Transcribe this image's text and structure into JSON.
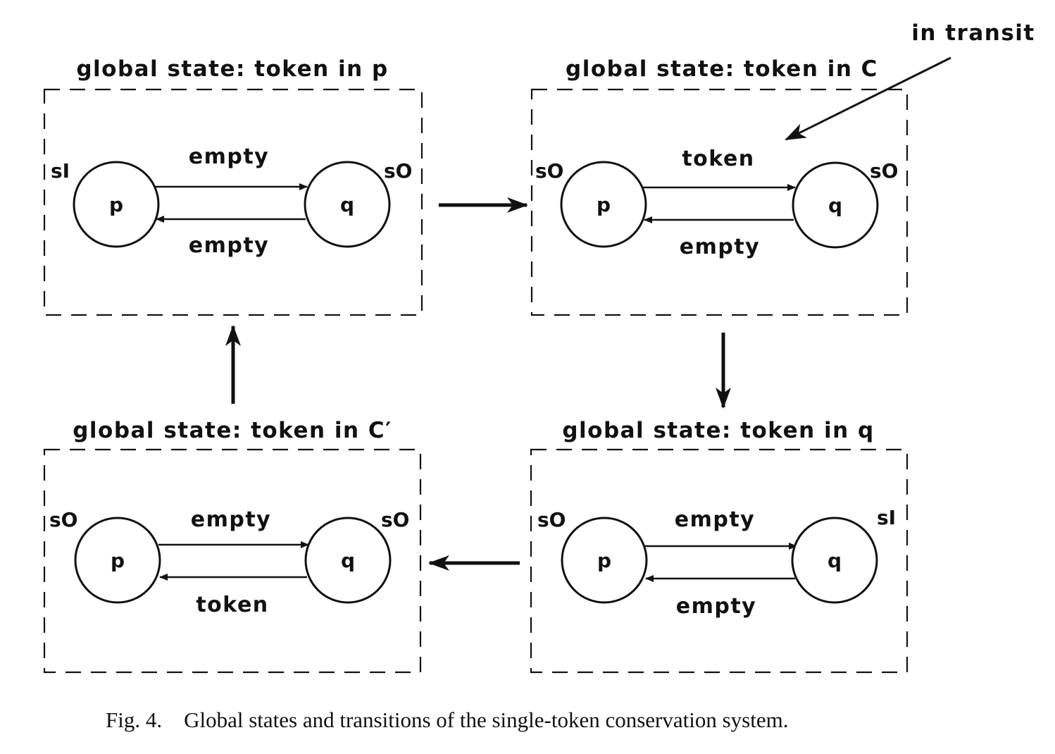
{
  "panels": [
    {
      "title": "global state: token in p",
      "top_channel": "empty",
      "bottom_channel": "empty",
      "p_state": "sI",
      "q_state": "sO",
      "p_label": "p",
      "q_label": "q"
    },
    {
      "title": "global state: token in C",
      "top_channel": "token",
      "bottom_channel": "empty",
      "p_state": "sO",
      "q_state": "sO",
      "p_label": "p",
      "q_label": "q"
    },
    {
      "title": "global state: token in C′",
      "top_channel": "empty",
      "bottom_channel": "token",
      "p_state": "sO",
      "q_state": "sO",
      "p_label": "p",
      "q_label": "q"
    },
    {
      "title": "global state: token in q",
      "top_channel": "empty",
      "bottom_channel": "empty",
      "p_state": "sO",
      "q_state": "sI",
      "p_label": "p",
      "q_label": "q"
    }
  ],
  "annotation": "in transit",
  "caption": "Fig. 4.    Global states and transitions of the single-token conservation system."
}
